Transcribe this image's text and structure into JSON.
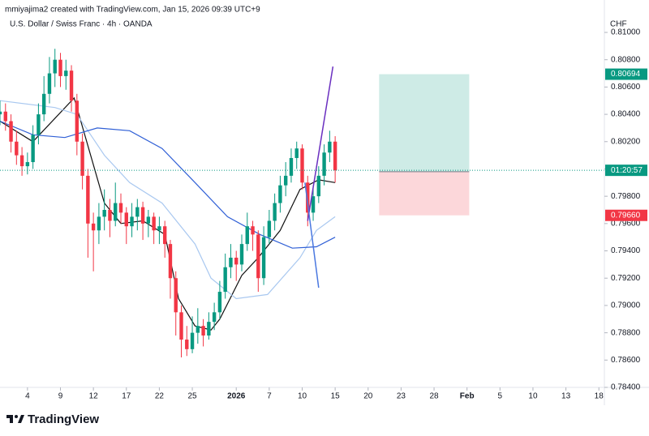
{
  "header": {
    "author_line": "mmiyajima2 created with TradingView.com, Jan 15, 2026 09:39 UTC+9",
    "symbol_line": "U.S. Dollar / Swiss Franc · 4h · OANDA"
  },
  "footer": {
    "brand": "TradingView"
  },
  "chart_data": {
    "type": "candlestick",
    "currency": "CHF",
    "countdown": "01:20:57",
    "up_color": "#089981",
    "down_color": "#f23645",
    "grid": false,
    "xlim": [
      0,
      110
    ],
    "ylim": [
      0.784,
      0.81
    ],
    "xticks": [
      {
        "value": 5,
        "label": "4"
      },
      {
        "value": 11,
        "label": "9"
      },
      {
        "value": 17,
        "label": "12"
      },
      {
        "value": 23,
        "label": "17"
      },
      {
        "value": 29,
        "label": "22"
      },
      {
        "value": 35,
        "label": "25"
      },
      {
        "value": 43,
        "label": "2026"
      },
      {
        "value": 49,
        "label": "7"
      },
      {
        "value": 55,
        "label": "10"
      },
      {
        "value": 61,
        "label": "15"
      },
      {
        "value": 67,
        "label": "20"
      },
      {
        "value": 73,
        "label": "23"
      },
      {
        "value": 79,
        "label": "28"
      },
      {
        "value": 85,
        "label": "Feb"
      },
      {
        "value": 91,
        "label": "5"
      },
      {
        "value": 97,
        "label": "10"
      },
      {
        "value": 103,
        "label": "13"
      },
      {
        "value": 109,
        "label": "18"
      }
    ],
    "yticks": [
      {
        "value": 0.81,
        "label": "0.81000"
      },
      {
        "value": 0.808,
        "label": "0.80800"
      },
      {
        "value": 0.806,
        "label": "0.80600"
      },
      {
        "value": 0.804,
        "label": "0.80400"
      },
      {
        "value": 0.802,
        "label": "0.80200"
      },
      {
        "value": 0.8,
        "label": "0.80000"
      },
      {
        "value": 0.798,
        "label": "0.79800"
      },
      {
        "value": 0.796,
        "label": "0.79600"
      },
      {
        "value": 0.794,
        "label": "0.79400"
      },
      {
        "value": 0.792,
        "label": "0.79200"
      },
      {
        "value": 0.79,
        "label": "0.79000"
      },
      {
        "value": 0.788,
        "label": "0.78800"
      },
      {
        "value": 0.786,
        "label": "0.78600"
      },
      {
        "value": 0.784,
        "label": "0.78400"
      }
    ],
    "candles": [
      [
        0.804,
        0.805,
        0.8032,
        0.8042
      ],
      [
        0.8042,
        0.8048,
        0.8028,
        0.8035
      ],
      [
        0.8035,
        0.804,
        0.8012,
        0.802
      ],
      [
        0.802,
        0.8028,
        0.8003,
        0.801
      ],
      [
        0.801,
        0.8016,
        0.7995,
        0.8002
      ],
      [
        0.8002,
        0.8012,
        0.7996,
        0.8005
      ],
      [
        0.8005,
        0.8032,
        0.8,
        0.8025
      ],
      [
        0.8025,
        0.8048,
        0.8018,
        0.804
      ],
      [
        0.804,
        0.8068,
        0.8035,
        0.8055
      ],
      [
        0.8055,
        0.8082,
        0.8048,
        0.807
      ],
      [
        0.807,
        0.8088,
        0.806,
        0.808
      ],
      [
        0.808,
        0.8085,
        0.806,
        0.8068
      ],
      [
        0.8068,
        0.808,
        0.8058,
        0.8072
      ],
      [
        0.8072,
        0.8076,
        0.8042,
        0.805
      ],
      [
        0.805,
        0.8055,
        0.801,
        0.802
      ],
      [
        0.802,
        0.8026,
        0.7985,
        0.7995
      ],
      [
        0.7995,
        0.8,
        0.7935,
        0.796
      ],
      [
        0.796,
        0.7968,
        0.7925,
        0.7955
      ],
      [
        0.7955,
        0.7975,
        0.7945,
        0.7965
      ],
      [
        0.7965,
        0.7985,
        0.7955,
        0.797
      ],
      [
        0.797,
        0.7978,
        0.795,
        0.7962
      ],
      [
        0.7962,
        0.799,
        0.7958,
        0.7975
      ],
      [
        0.7975,
        0.7982,
        0.796,
        0.7968
      ],
      [
        0.7968,
        0.7972,
        0.7945,
        0.7958
      ],
      [
        0.7958,
        0.7975,
        0.795,
        0.7965
      ],
      [
        0.7965,
        0.7978,
        0.7955,
        0.7972
      ],
      [
        0.7972,
        0.7976,
        0.7948,
        0.796
      ],
      [
        0.796,
        0.797,
        0.795,
        0.7965
      ],
      [
        0.7965,
        0.7968,
        0.7945,
        0.7955
      ],
      [
        0.7955,
        0.7965,
        0.7945,
        0.7958
      ],
      [
        0.7958,
        0.7962,
        0.7935,
        0.7945
      ],
      [
        0.7945,
        0.7948,
        0.7905,
        0.792
      ],
      [
        0.792,
        0.7925,
        0.7878,
        0.7895
      ],
      [
        0.7895,
        0.79,
        0.7862,
        0.7875
      ],
      [
        0.7875,
        0.7885,
        0.7863,
        0.7868
      ],
      [
        0.7868,
        0.7892,
        0.7865,
        0.788
      ],
      [
        0.788,
        0.7898,
        0.7872,
        0.7885
      ],
      [
        0.7885,
        0.789,
        0.787,
        0.7878
      ],
      [
        0.7878,
        0.7895,
        0.7875,
        0.7888
      ],
      [
        0.7888,
        0.7902,
        0.7882,
        0.7895
      ],
      [
        0.7895,
        0.7918,
        0.789,
        0.791
      ],
      [
        0.791,
        0.7938,
        0.7905,
        0.7928
      ],
      [
        0.7928,
        0.7945,
        0.792,
        0.7935
      ],
      [
        0.7935,
        0.794,
        0.7918,
        0.793
      ],
      [
        0.793,
        0.7952,
        0.7925,
        0.7945
      ],
      [
        0.7945,
        0.7968,
        0.794,
        0.7958
      ],
      [
        0.7958,
        0.7962,
        0.794,
        0.7952
      ],
      [
        0.7952,
        0.7955,
        0.791,
        0.792
      ],
      [
        0.792,
        0.7958,
        0.7915,
        0.795
      ],
      [
        0.795,
        0.797,
        0.7945,
        0.7962
      ],
      [
        0.7962,
        0.7982,
        0.7955,
        0.7975
      ],
      [
        0.7975,
        0.7995,
        0.7968,
        0.7988
      ],
      [
        0.7988,
        0.8005,
        0.798,
        0.7995
      ],
      [
        0.7995,
        0.8015,
        0.799,
        0.8008
      ],
      [
        0.8008,
        0.802,
        0.8,
        0.8015
      ],
      [
        0.8015,
        0.8018,
        0.7985,
        0.799
      ],
      [
        0.799,
        0.7995,
        0.7958,
        0.7968
      ],
      [
        0.7968,
        0.7988,
        0.7962,
        0.798
      ],
      [
        0.798,
        0.8002,
        0.7975,
        0.7995
      ],
      [
        0.7995,
        0.8018,
        0.7988,
        0.8012
      ],
      [
        0.8012,
        0.8028,
        0.8005,
        0.802
      ],
      [
        0.802,
        0.8024,
        0.799,
        0.7999
      ]
    ],
    "series": [
      {
        "color": "#111111",
        "x": [
          0,
          6,
          13.5,
          19,
          22,
          26,
          30,
          32.5,
          35.5,
          38.4,
          40,
          44,
          47,
          51,
          54.6,
          58,
          61
        ],
        "values": [
          0.8035,
          0.802,
          0.8052,
          0.7975,
          0.796,
          0.7962,
          0.7952,
          0.7905,
          0.7885,
          0.7882,
          0.789,
          0.7922,
          0.7935,
          0.7955,
          0.7985,
          0.7992,
          0.799
        ]
      },
      {
        "color": "#a9c8f0",
        "x": [
          0,
          10,
          14,
          19,
          23.6,
          29.5,
          35.5,
          38.4,
          43,
          48.7,
          54.6,
          57.6,
          61
        ],
        "values": [
          0.805,
          0.8045,
          0.804,
          0.801,
          0.799,
          0.7975,
          0.7945,
          0.792,
          0.7905,
          0.7908,
          0.7935,
          0.7955,
          0.7965
        ]
      },
      {
        "color": "#2f5fd6",
        "x": [
          0,
          6,
          11.8,
          17.7,
          23.6,
          29.5,
          35.5,
          41.4,
          47.3,
          53.2,
          57.6,
          61
        ],
        "values": [
          0.8035,
          0.8025,
          0.8023,
          0.803,
          0.8028,
          0.8015,
          0.799,
          0.7965,
          0.7952,
          0.7942,
          0.7943,
          0.795
        ]
      }
    ],
    "drawings": [
      {
        "color": "#6a2fc0",
        "x": [
          56,
          60.6
        ],
        "values": [
          0.7962,
          0.8075
        ]
      },
      {
        "color": "#4a78e0",
        "x": [
          55.5,
          58
        ],
        "values": [
          0.799,
          0.7913
        ]
      }
    ],
    "position": {
      "x": [
        69,
        85.4
      ],
      "entry": 0.7998,
      "target": {
        "value": 0.80694,
        "label": "0.80694"
      },
      "stop": {
        "value": 0.7966,
        "label": "0.79660"
      }
    }
  }
}
